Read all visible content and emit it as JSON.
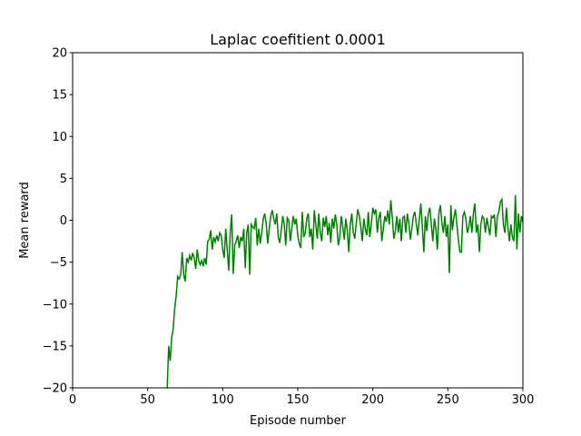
{
  "chart_data": {
    "type": "line",
    "title": "Laplac coefitient 0.0001",
    "x_label": "Episode number",
    "y_label": "Mean reward",
    "x": [
      63,
      64,
      65,
      66,
      67,
      68,
      69,
      70,
      71,
      72,
      73,
      74,
      75,
      76,
      77,
      78,
      79,
      80,
      81,
      82,
      83,
      84,
      85,
      86,
      87,
      88,
      89,
      90,
      91,
      92,
      93,
      94,
      95,
      96,
      97,
      98,
      99,
      100,
      101,
      102,
      103,
      104,
      105,
      106,
      107,
      108,
      109,
      110,
      111,
      112,
      113,
      114,
      115,
      116,
      117,
      118,
      119,
      120,
      121,
      122,
      123,
      124,
      125,
      126,
      127,
      128,
      129,
      130,
      131,
      132,
      133,
      134,
      135,
      136,
      137,
      138,
      139,
      140,
      141,
      142,
      143,
      144,
      145,
      146,
      147,
      148,
      149,
      150,
      151,
      152,
      153,
      154,
      155,
      156,
      157,
      158,
      159,
      160,
      161,
      162,
      163,
      164,
      165,
      166,
      167,
      168,
      169,
      170,
      171,
      172,
      173,
      174,
      175,
      176,
      177,
      178,
      179,
      180,
      181,
      182,
      183,
      184,
      185,
      186,
      187,
      188,
      189,
      190,
      191,
      192,
      193,
      194,
      195,
      196,
      197,
      198,
      199,
      200,
      201,
      202,
      203,
      204,
      205,
      206,
      207,
      208,
      209,
      210,
      211,
      212,
      213,
      214,
      215,
      216,
      217,
      218,
      219,
      220,
      221,
      222,
      223,
      224,
      225,
      226,
      227,
      228,
      229,
      230,
      231,
      232,
      233,
      234,
      235,
      236,
      237,
      238,
      239,
      240,
      241,
      242,
      243,
      244,
      245,
      246,
      247,
      248,
      249,
      250,
      251,
      252,
      253,
      254,
      255,
      256,
      257,
      258,
      259,
      260,
      261,
      262,
      263,
      264,
      265,
      266,
      267,
      268,
      269,
      270,
      271,
      272,
      273,
      274,
      275,
      276,
      277,
      278,
      279,
      280,
      281,
      282,
      283,
      284,
      285,
      286,
      287,
      288,
      289,
      290,
      291,
      292,
      293,
      294,
      295,
      296,
      297,
      298,
      299,
      300
    ],
    "series": [
      {
        "name": "Mean reward",
        "color": "#008000",
        "values": [
          -20,
          -15,
          -16.8,
          -14,
          -13,
          -10.5,
          -9,
          -6.7,
          -7,
          -6.5,
          -3.8,
          -6.5,
          -7.3,
          -4.5,
          -5,
          -4.2,
          -4.8,
          -3.9,
          -4.5,
          -5.8,
          -3.5,
          -4.8,
          -5.3,
          -4.8,
          -5.5,
          -4.5,
          -5.3,
          -2.5,
          -2.3,
          -1.2,
          -3.5,
          -2,
          -2.6,
          -1.8,
          -2.5,
          -1.5,
          -1.8,
          -3.5,
          -4.5,
          -1,
          -3.5,
          -6,
          -1.5,
          0.7,
          -6.4,
          -3,
          -2.5,
          -1.8,
          -3.3,
          -2,
          -2.5,
          -1,
          -5.7,
          -1.5,
          -0.5,
          -6.5,
          -0.5,
          -0.8,
          -1,
          0.3,
          -3,
          -1,
          -2.8,
          -1.5,
          0.2,
          0.8,
          -0.5,
          -2.8,
          -1,
          0.5,
          1.2,
          0.2,
          -0.5,
          0.8,
          -2,
          -2.7,
          -1.2,
          0.5,
          -0.5,
          -3,
          0.3,
          0,
          -2.5,
          -1,
          0.5,
          -0.5,
          0.2,
          -1.8,
          -2.8,
          -3.3,
          1,
          -2,
          -1.5,
          0.2,
          0.8,
          -2,
          -1,
          -3.5,
          1.2,
          -0.5,
          -2.2,
          0.8,
          -1.5,
          -2.5,
          0.3,
          -0.8,
          0.5,
          -1.8,
          -0.3,
          -2.7,
          0.2,
          -1,
          0.7,
          -0.5,
          -3,
          -2,
          0.5,
          -0.8,
          -2.3,
          0.2,
          -1.2,
          -3.8,
          -0.5,
          0.8,
          -1.5,
          -2.2,
          -0.3,
          1.3,
          0.5,
          -0.8,
          -2.5,
          0.2,
          -1,
          -1.8,
          1,
          -2,
          -0.5,
          1.5,
          0.8,
          1.3,
          -1.5,
          0.3,
          1,
          -2.5,
          -1,
          0.5,
          -0.2,
          1.2,
          -0.5,
          2.4,
          0.3,
          -2.2,
          -1.3,
          0.5,
          -1.5,
          0.2,
          -2.5,
          0.3,
          0.5,
          -1.5,
          0.8,
          -0.3,
          -2.3,
          -1,
          0.5,
          1,
          -0.5,
          -1.8,
          0.2,
          2,
          -0.8,
          -3.8,
          0.5,
          -1.3,
          0.8,
          1.5,
          -0.5,
          -2.5,
          0.2,
          -1,
          -3.5,
          0.8,
          1.8,
          -0.3,
          -1.5,
          0.5,
          -2,
          -0.5,
          -6.3,
          1.8,
          -1.2,
          0.3,
          1.3,
          -0.5,
          -2.3,
          -3.8,
          -3.8,
          0.5,
          1,
          0.2,
          -1.5,
          -0.8,
          0.5,
          -1.5,
          0.8,
          2,
          -1.5,
          -0.5,
          -3.8,
          -0.5,
          0.5,
          0.2,
          -1.5,
          0.3,
          -0.8,
          -1.8,
          0.5,
          0.3,
          0.7,
          -2,
          0.5,
          1,
          2.2,
          2.5,
          -0.5,
          -1.5,
          1.5,
          -0.8,
          -2.5,
          -0.5,
          -2,
          -2.5,
          3,
          -3.5,
          0.8,
          -1.5,
          0.5,
          -0.2
        ]
      }
    ],
    "xlim": [
      0,
      300
    ],
    "xticks": [
      0,
      50,
      100,
      150,
      200,
      250,
      300
    ],
    "ylim": [
      -20,
      20
    ],
    "yticks": [
      {
        "value": -20,
        "label": "−20"
      },
      {
        "value": -15,
        "label": "−15"
      },
      {
        "value": -10,
        "label": "−10"
      },
      {
        "value": -5,
        "label": "−5"
      },
      0,
      5,
      10,
      15,
      20
    ]
  }
}
